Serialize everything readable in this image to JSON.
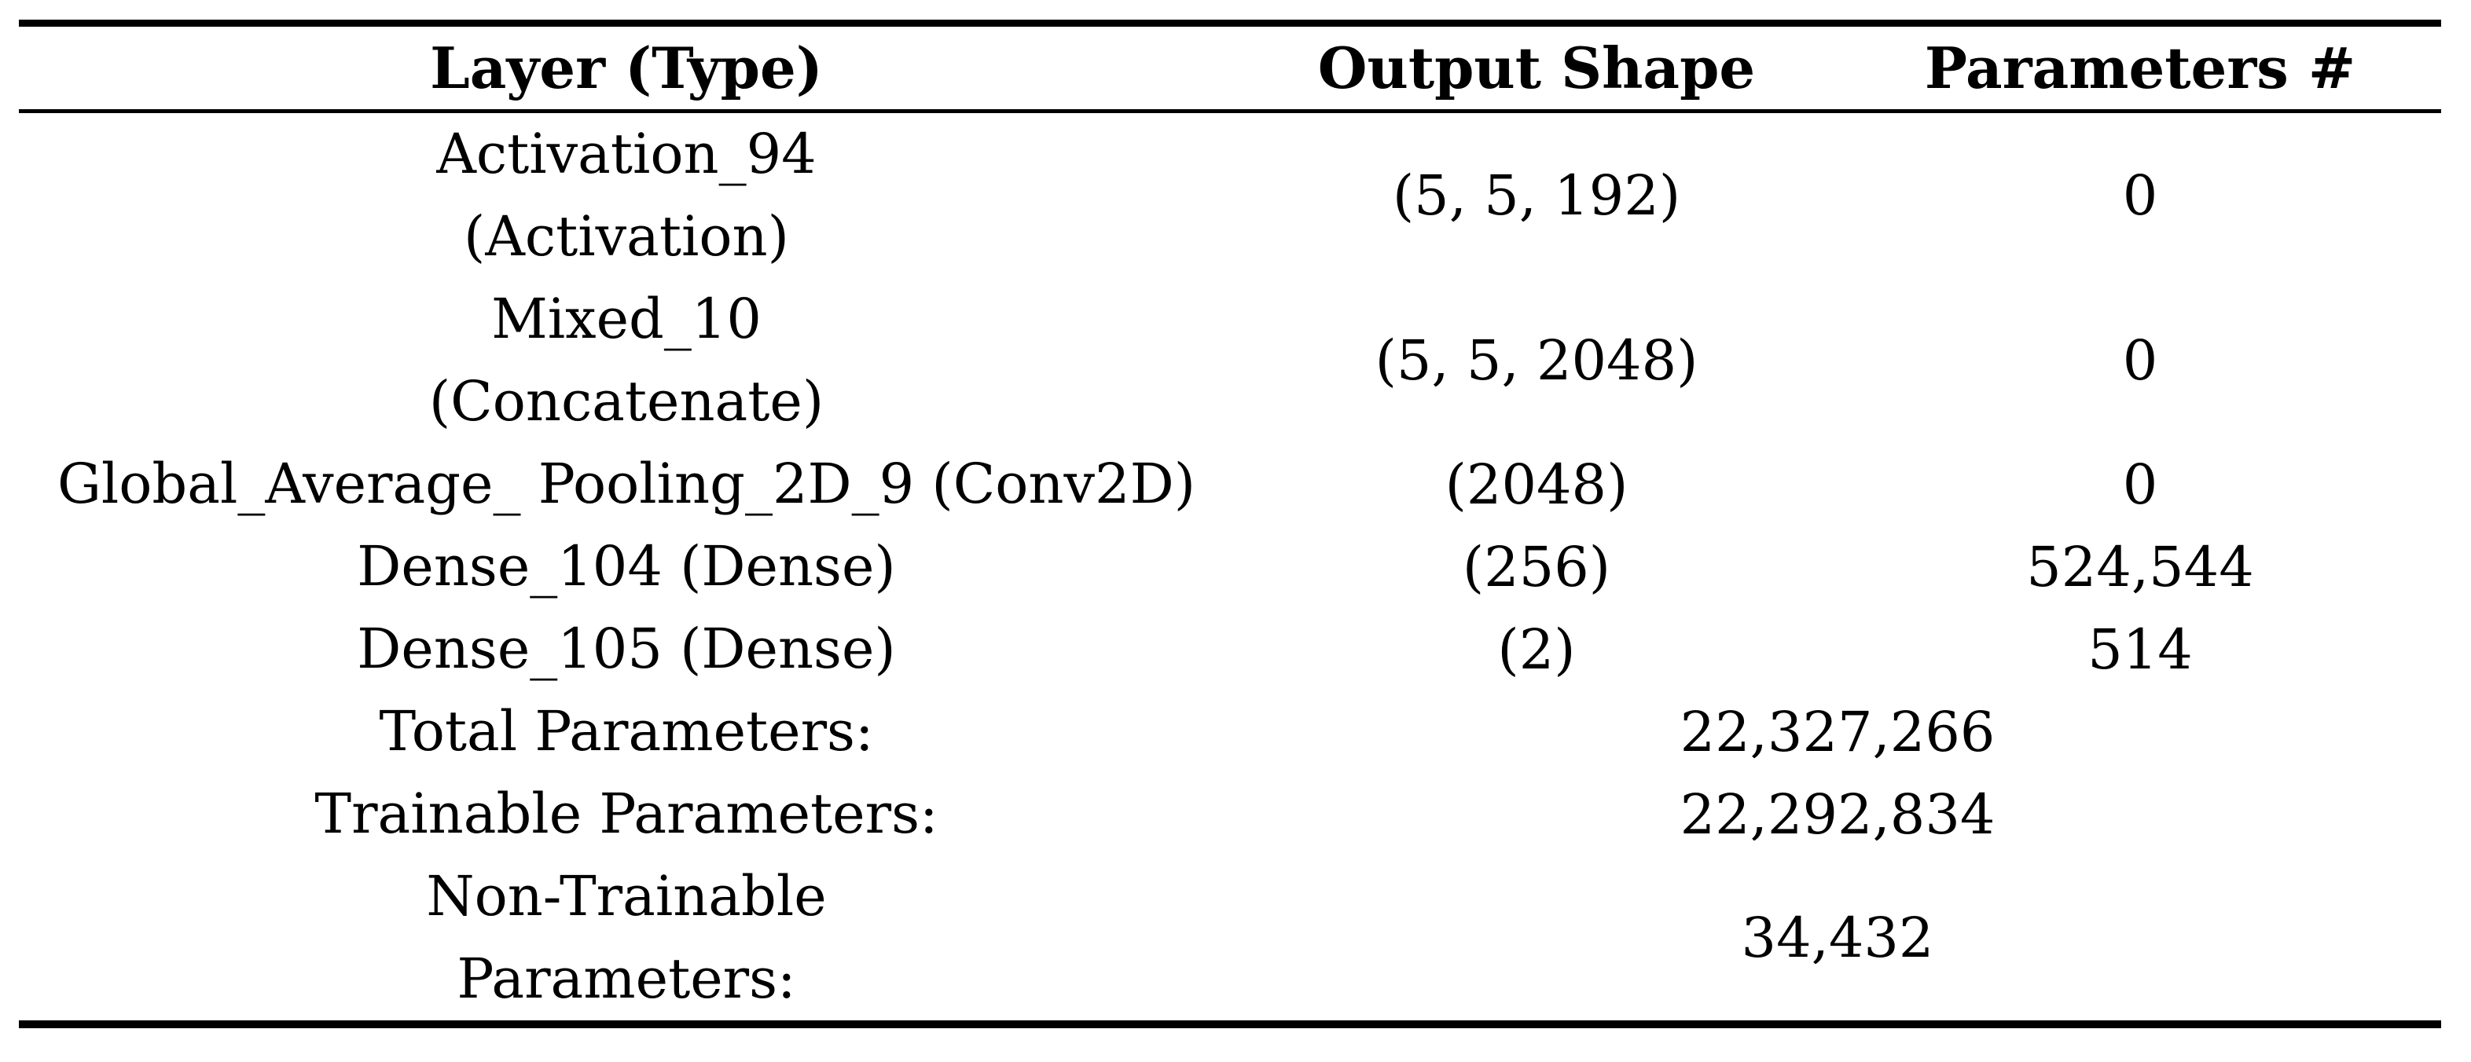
{
  "table": {
    "headers": {
      "layer": "Layer (Type)",
      "output_shape": "Output Shape",
      "parameters": "Parameters #"
    },
    "rows": [
      {
        "layer_line1": "Activation_94",
        "layer_line2": "(Activation)",
        "output_shape": "(5, 5, 192)",
        "parameters": "0"
      },
      {
        "layer_line1": "Mixed_10",
        "layer_line2": "(Concatenate)",
        "output_shape": "(5, 5, 2048)",
        "parameters": "0"
      },
      {
        "layer_line1": "Global_Average_ Pooling_2D_9 (Conv2D)",
        "output_shape": "(2048)",
        "parameters": "0"
      },
      {
        "layer_line1": "Dense_104 (Dense)",
        "output_shape": "(256)",
        "parameters": "524,544"
      },
      {
        "layer_line1": "Dense_105 (Dense)",
        "output_shape": "(2)",
        "parameters": "514"
      }
    ],
    "summary_rows": [
      {
        "label_line1": "Total Parameters:",
        "value": "22,327,266"
      },
      {
        "label_line1": "Trainable Parameters:",
        "value": "22,292,834"
      },
      {
        "label_line1": "Non-Trainable",
        "label_line2": "Parameters:",
        "value": "34,432"
      }
    ]
  },
  "colors": {
    "text": "#000000",
    "background": "#ffffff",
    "rule": "#000000"
  }
}
